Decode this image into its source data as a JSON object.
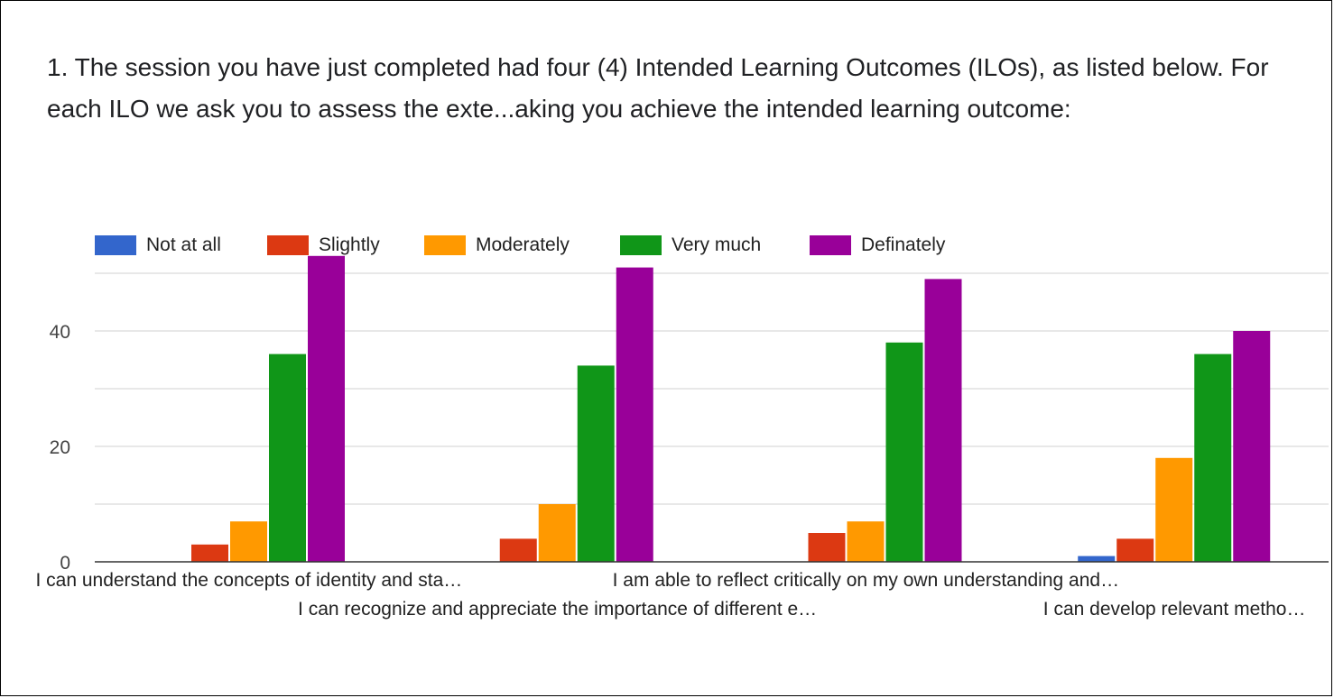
{
  "question": {
    "text": "1. The session you have just completed had four (4) Intended Learning Outcomes (ILOs), as listed below. For each ILO we ask you to assess the exte...aking you achieve the intended learning outcome:"
  },
  "colors": {
    "Not at all": "#3366cc",
    "Slightly": "#dc3912",
    "Moderately": "#ff9900",
    "Very much": "#109618",
    "Definately": "#990099",
    "grid": "#e0e0e0",
    "axis": "#333333",
    "tick_text": "#444444"
  },
  "chart_data": {
    "type": "bar",
    "title": "",
    "xlabel": "",
    "ylabel": "",
    "ylim": [
      0,
      55
    ],
    "yticks": [
      0,
      20,
      40
    ],
    "grid_lines": [
      10,
      20,
      30,
      40,
      50
    ],
    "legend_position": "top-left",
    "categories": [
      "I can understand the concepts of identity and sta…",
      "I can recognize and appreciate the importance of different e…",
      "I am able to reflect critically on my own understanding and…",
      "I can develop relevant metho…"
    ],
    "series": [
      {
        "name": "Not at all",
        "values": [
          0,
          0,
          0,
          1
        ]
      },
      {
        "name": "Slightly",
        "values": [
          3,
          4,
          5,
          4
        ]
      },
      {
        "name": "Moderately",
        "values": [
          7,
          10,
          7,
          18
        ]
      },
      {
        "name": "Very much",
        "values": [
          36,
          34,
          38,
          36
        ]
      },
      {
        "name": "Definately",
        "values": [
          53,
          51,
          49,
          40
        ]
      }
    ]
  }
}
